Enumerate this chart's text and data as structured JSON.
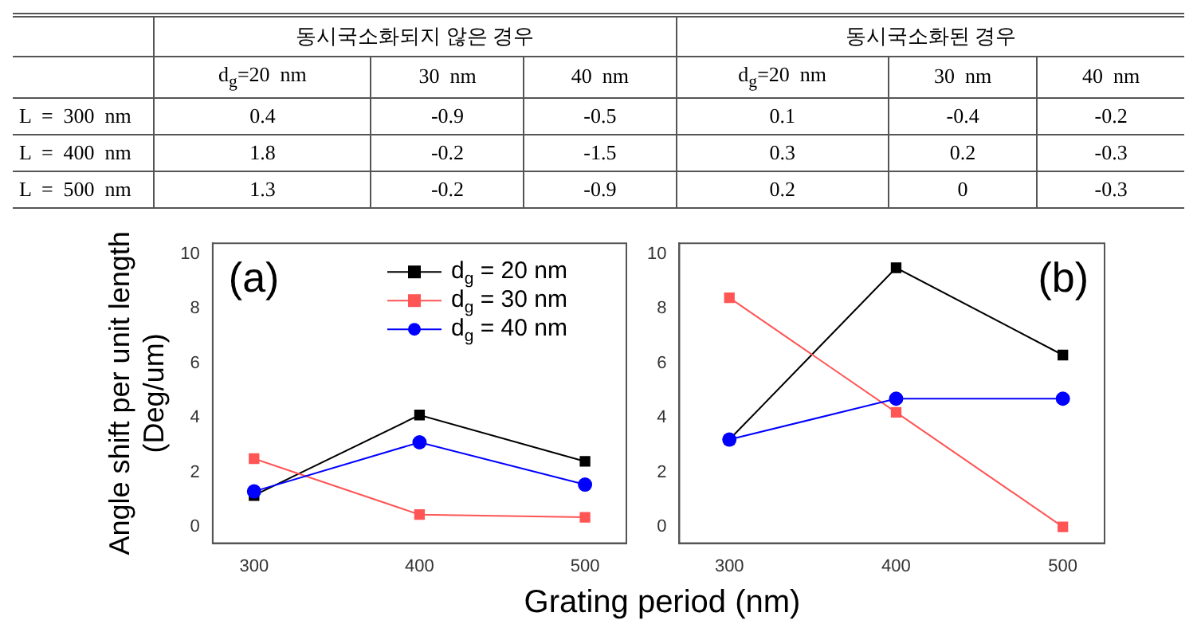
{
  "chart_data": [
    {
      "type": "other",
      "annotations": [
        "동시국소화되지 않은 경우",
        "동시국소화된 경우",
        "d$_{g}$=20  nm",
        "30  nm",
        "40  nm",
        "d$_{g}$=20  nm",
        "30  nm",
        "40  nm",
        "L  =  300  nm",
        "0.4",
        "-0.9",
        "-0.5",
        "0.1",
        "-0.4",
        "-0.2",
        "L  =  400  nm",
        "1.8",
        "-0.2",
        "-1.5",
        "0.3",
        "0.2",
        "-0.3",
        "L  =  500  nm",
        "1.3",
        "-0.2",
        "-0.9",
        "0.2",
        "0",
        "-0.3"
      ]
    },
    {
      "type": "line",
      "ylabel": "Angle shift per unit length\n(Deg/um)",
      "xlabel": "Grating period (nm)",
      "annotations": [
        "(a)"
      ],
      "legend": "top right",
      "x": [
        300,
        400,
        500
      ],
      "xlim": [
        275,
        525
      ],
      "xticks": [
        300,
        400,
        500
      ],
      "ylim": [
        -0.6,
        10.4
      ],
      "yticks": [
        0,
        2,
        4,
        6,
        8,
        10
      ],
      "series": [
        {
          "name": "d$_{g}$ = 20 nm",
          "color": "#000000",
          "marker": "square",
          "values": [
            1.15,
            4.1,
            2.4
          ]
        },
        {
          "name": "d$_{g}$ = 30 nm",
          "color": "#ff5555",
          "marker": "square",
          "values": [
            2.5,
            0.45,
            0.35
          ]
        },
        {
          "name": "d$_{g}$ = 40 nm",
          "color": "#0000ff",
          "marker": "circle",
          "values": [
            1.3,
            3.1,
            1.55
          ]
        }
      ]
    },
    {
      "type": "line",
      "annotations": [
        "(b)"
      ],
      "x": [
        300,
        400,
        500
      ],
      "xlim": [
        270,
        525
      ],
      "xticks": [
        300,
        400,
        500
      ],
      "ylim": [
        -0.6,
        10.4
      ],
      "yticks": [
        0,
        2,
        4,
        6,
        8,
        10
      ],
      "series": [
        {
          "color": "#000000",
          "marker": "square",
          "values": [
            3.2,
            9.5,
            6.3
          ]
        },
        {
          "color": "#ff5555",
          "marker": "square",
          "values": [
            8.4,
            4.2,
            0
          ]
        },
        {
          "color": "#0000ff",
          "marker": "circle",
          "values": [
            3.2,
            4.7,
            4.7
          ]
        }
      ]
    }
  ]
}
